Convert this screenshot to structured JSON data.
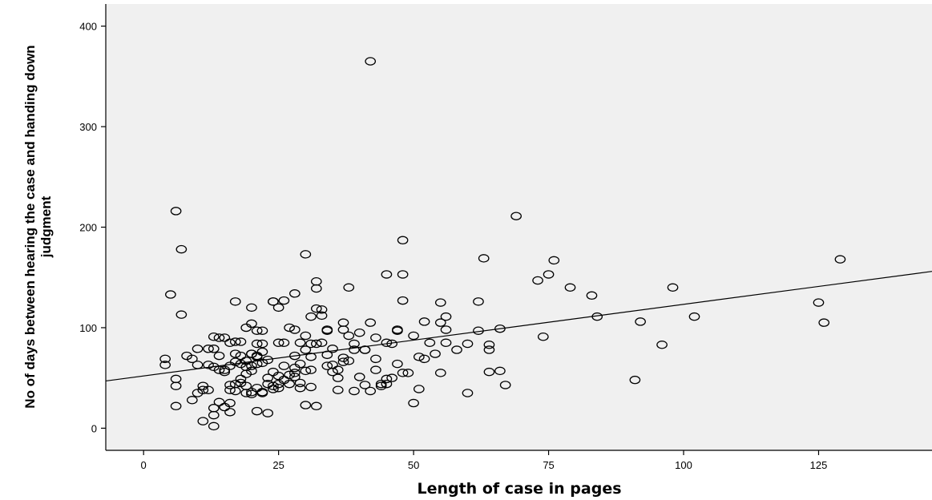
{
  "chart_data": {
    "type": "scatter",
    "title": "",
    "xlabel": "Length of case in pages",
    "ylabel_lines": [
      "No of days between hearing the case and handing down",
      "judgment"
    ],
    "xlim": [
      -7,
      146
    ],
    "ylim": [
      -22,
      422
    ],
    "x_ticks": [
      0,
      25,
      50,
      75,
      100,
      125
    ],
    "y_ticks": [
      0,
      100,
      200,
      300,
      400
    ],
    "grid": false,
    "background_color": "#f0f0f0",
    "marker_color": "#000000",
    "fit_line": {
      "x1": -7,
      "y1": 47,
      "x2": 146,
      "y2": 156
    },
    "points": [
      [
        42,
        365
      ],
      [
        6,
        216
      ],
      [
        69,
        211
      ],
      [
        48,
        187
      ],
      [
        30,
        173
      ],
      [
        7,
        178
      ],
      [
        63,
        169
      ],
      [
        76,
        167
      ],
      [
        129,
        168
      ],
      [
        45,
        153
      ],
      [
        48,
        153
      ],
      [
        73,
        147
      ],
      [
        75,
        153
      ],
      [
        79,
        140
      ],
      [
        98,
        140
      ],
      [
        38,
        140
      ],
      [
        32,
        146
      ],
      [
        32,
        139
      ],
      [
        5,
        133
      ],
      [
        83,
        132
      ],
      [
        7,
        113
      ],
      [
        17,
        126
      ],
      [
        24,
        126
      ],
      [
        24,
        126
      ],
      [
        26,
        127
      ],
      [
        28,
        134
      ],
      [
        20,
        120
      ],
      [
        25,
        120
      ],
      [
        32,
        119
      ],
      [
        33,
        118
      ],
      [
        55,
        125
      ],
      [
        62,
        126
      ],
      [
        48,
        127
      ],
      [
        125,
        125
      ],
      [
        126,
        105
      ],
      [
        92,
        106
      ],
      [
        84,
        111
      ],
      [
        102,
        111
      ],
      [
        96,
        83
      ],
      [
        91,
        48
      ],
      [
        56,
        111
      ],
      [
        55,
        105
      ],
      [
        56,
        98
      ],
      [
        52,
        106
      ],
      [
        47,
        97
      ],
      [
        42,
        105
      ],
      [
        37,
        105
      ],
      [
        33,
        112
      ],
      [
        31,
        111
      ],
      [
        34,
        98
      ],
      [
        37,
        98
      ],
      [
        40,
        95
      ],
      [
        43,
        90
      ],
      [
        45,
        85
      ],
      [
        50,
        92
      ],
      [
        53,
        85
      ],
      [
        56,
        85
      ],
      [
        60,
        84
      ],
      [
        62,
        97
      ],
      [
        64,
        83
      ],
      [
        64,
        78
      ],
      [
        66,
        99
      ],
      [
        74,
        91
      ],
      [
        64,
        56
      ],
      [
        66,
        57
      ],
      [
        67,
        43
      ],
      [
        60,
        35
      ],
      [
        55,
        55
      ],
      [
        51,
        71
      ],
      [
        50,
        25
      ],
      [
        51,
        39
      ],
      [
        48,
        55
      ],
      [
        46,
        50
      ],
      [
        45,
        49
      ],
      [
        44,
        44
      ],
      [
        47,
        64
      ],
      [
        49,
        55
      ],
      [
        42,
        37
      ],
      [
        39,
        37
      ],
      [
        40,
        51
      ],
      [
        41,
        43
      ],
      [
        43,
        58
      ],
      [
        41,
        78
      ],
      [
        41,
        78
      ],
      [
        43,
        69
      ],
      [
        36,
        50
      ],
      [
        36,
        38
      ],
      [
        35,
        63
      ],
      [
        34,
        73
      ],
      [
        37,
        70
      ],
      [
        39,
        78
      ],
      [
        38,
        67
      ],
      [
        35,
        56
      ],
      [
        34,
        62
      ],
      [
        29,
        40
      ],
      [
        31,
        41
      ],
      [
        30,
        23
      ],
      [
        32,
        22
      ],
      [
        31,
        84
      ],
      [
        30,
        92
      ],
      [
        32,
        84
      ],
      [
        33,
        85
      ],
      [
        29,
        85
      ],
      [
        28,
        98
      ],
      [
        27,
        100
      ],
      [
        30,
        78
      ],
      [
        31,
        71
      ],
      [
        31,
        58
      ],
      [
        28,
        60
      ],
      [
        28,
        51
      ],
      [
        26,
        62
      ],
      [
        26,
        48
      ],
      [
        27,
        44
      ],
      [
        25,
        52
      ],
      [
        26,
        85
      ],
      [
        25,
        85
      ],
      [
        24,
        56
      ],
      [
        23,
        50
      ],
      [
        22,
        97
      ],
      [
        21,
        97
      ],
      [
        20,
        104
      ],
      [
        19,
        100
      ],
      [
        18,
        86
      ],
      [
        17,
        86
      ],
      [
        16,
        85
      ],
      [
        15,
        90
      ],
      [
        14,
        90
      ],
      [
        13,
        91
      ],
      [
        18,
        72
      ],
      [
        17,
        74
      ],
      [
        19,
        67
      ],
      [
        20,
        74
      ],
      [
        21,
        71
      ],
      [
        22,
        76
      ],
      [
        23,
        68
      ],
      [
        21,
        64
      ],
      [
        22,
        65
      ],
      [
        20,
        62
      ],
      [
        21,
        84
      ],
      [
        22,
        84
      ],
      [
        20,
        57
      ],
      [
        19,
        54
      ],
      [
        18,
        49
      ],
      [
        19,
        42
      ],
      [
        21,
        40
      ],
      [
        22,
        36
      ],
      [
        20,
        36
      ],
      [
        19,
        35
      ],
      [
        18,
        45
      ],
      [
        17,
        44
      ],
      [
        16,
        43
      ],
      [
        17,
        37
      ],
      [
        16,
        38
      ],
      [
        16,
        25
      ],
      [
        15,
        21
      ],
      [
        16,
        16
      ],
      [
        14,
        26
      ],
      [
        13,
        20
      ],
      [
        13,
        13
      ],
      [
        11,
        7
      ],
      [
        13,
        2
      ],
      [
        12,
        38
      ],
      [
        11,
        38
      ],
      [
        10,
        35
      ],
      [
        11,
        42
      ],
      [
        12,
        63
      ],
      [
        13,
        61
      ],
      [
        14,
        58
      ],
      [
        15,
        56
      ],
      [
        12,
        79
      ],
      [
        10,
        79
      ],
      [
        10,
        63
      ],
      [
        9,
        69
      ],
      [
        8,
        72
      ],
      [
        6,
        49
      ],
      [
        6,
        42
      ],
      [
        6,
        22
      ],
      [
        9,
        28
      ],
      [
        4,
        69
      ],
      [
        4,
        63
      ],
      [
        21,
        72
      ],
      [
        23,
        44
      ],
      [
        24,
        42
      ],
      [
        25,
        44
      ],
      [
        27,
        53
      ],
      [
        28,
        55
      ],
      [
        29,
        45
      ],
      [
        23,
        15
      ],
      [
        21,
        17
      ],
      [
        22,
        35
      ],
      [
        20,
        34
      ],
      [
        24,
        39
      ],
      [
        25,
        40
      ],
      [
        18,
        64
      ],
      [
        19,
        61
      ],
      [
        15,
        58
      ],
      [
        16,
        62
      ],
      [
        17,
        66
      ],
      [
        14,
        72
      ],
      [
        13,
        79
      ],
      [
        20,
        74
      ],
      [
        28,
        72
      ],
      [
        29,
        64
      ],
      [
        30,
        57
      ],
      [
        34,
        97
      ],
      [
        35,
        79
      ],
      [
        36,
        58
      ],
      [
        37,
        66
      ],
      [
        38,
        92
      ],
      [
        39,
        84
      ],
      [
        46,
        84
      ],
      [
        47,
        98
      ],
      [
        52,
        69
      ],
      [
        54,
        74
      ],
      [
        58,
        78
      ],
      [
        44,
        42
      ],
      [
        45,
        44
      ]
    ]
  }
}
